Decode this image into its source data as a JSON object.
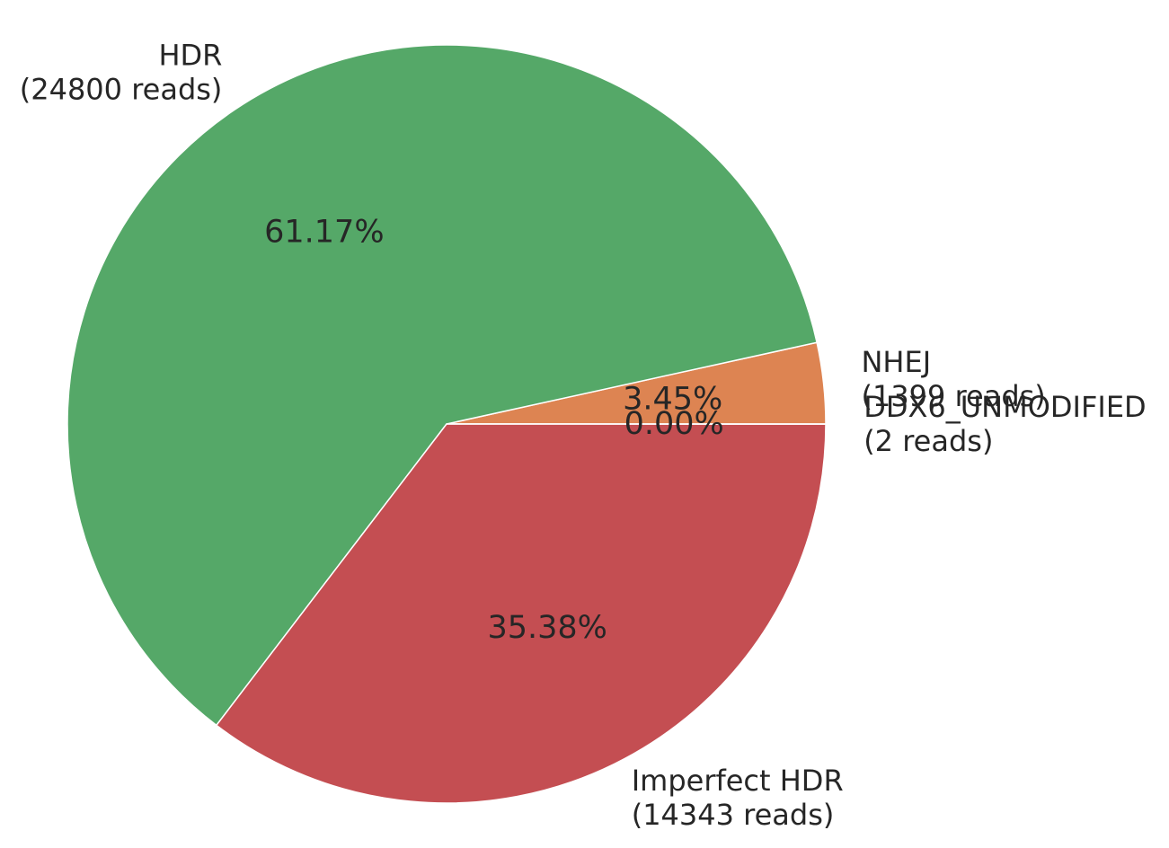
{
  "chart_data": {
    "type": "pie",
    "start_angle_deg": 0,
    "direction": "counterclockwise",
    "slices": [
      {
        "category": "NHEJ",
        "reads_label": "(1399 reads)",
        "value": 1399,
        "percent_label": "3.45%",
        "color": "#dd8452"
      },
      {
        "category": "HDR",
        "reads_label": "(24800 reads)",
        "value": 24800,
        "percent_label": "61.17%",
        "color": "#55a868"
      },
      {
        "category": "Imperfect HDR",
        "reads_label": "(14343 reads)",
        "value": 14343,
        "percent_label": "35.38%",
        "color": "#c44e52"
      },
      {
        "category": "DDX6_UNMODIFIED",
        "reads_label": "(2 reads)",
        "value": 2,
        "percent_label": "0.00%",
        "color": "#8172b3"
      }
    ]
  }
}
